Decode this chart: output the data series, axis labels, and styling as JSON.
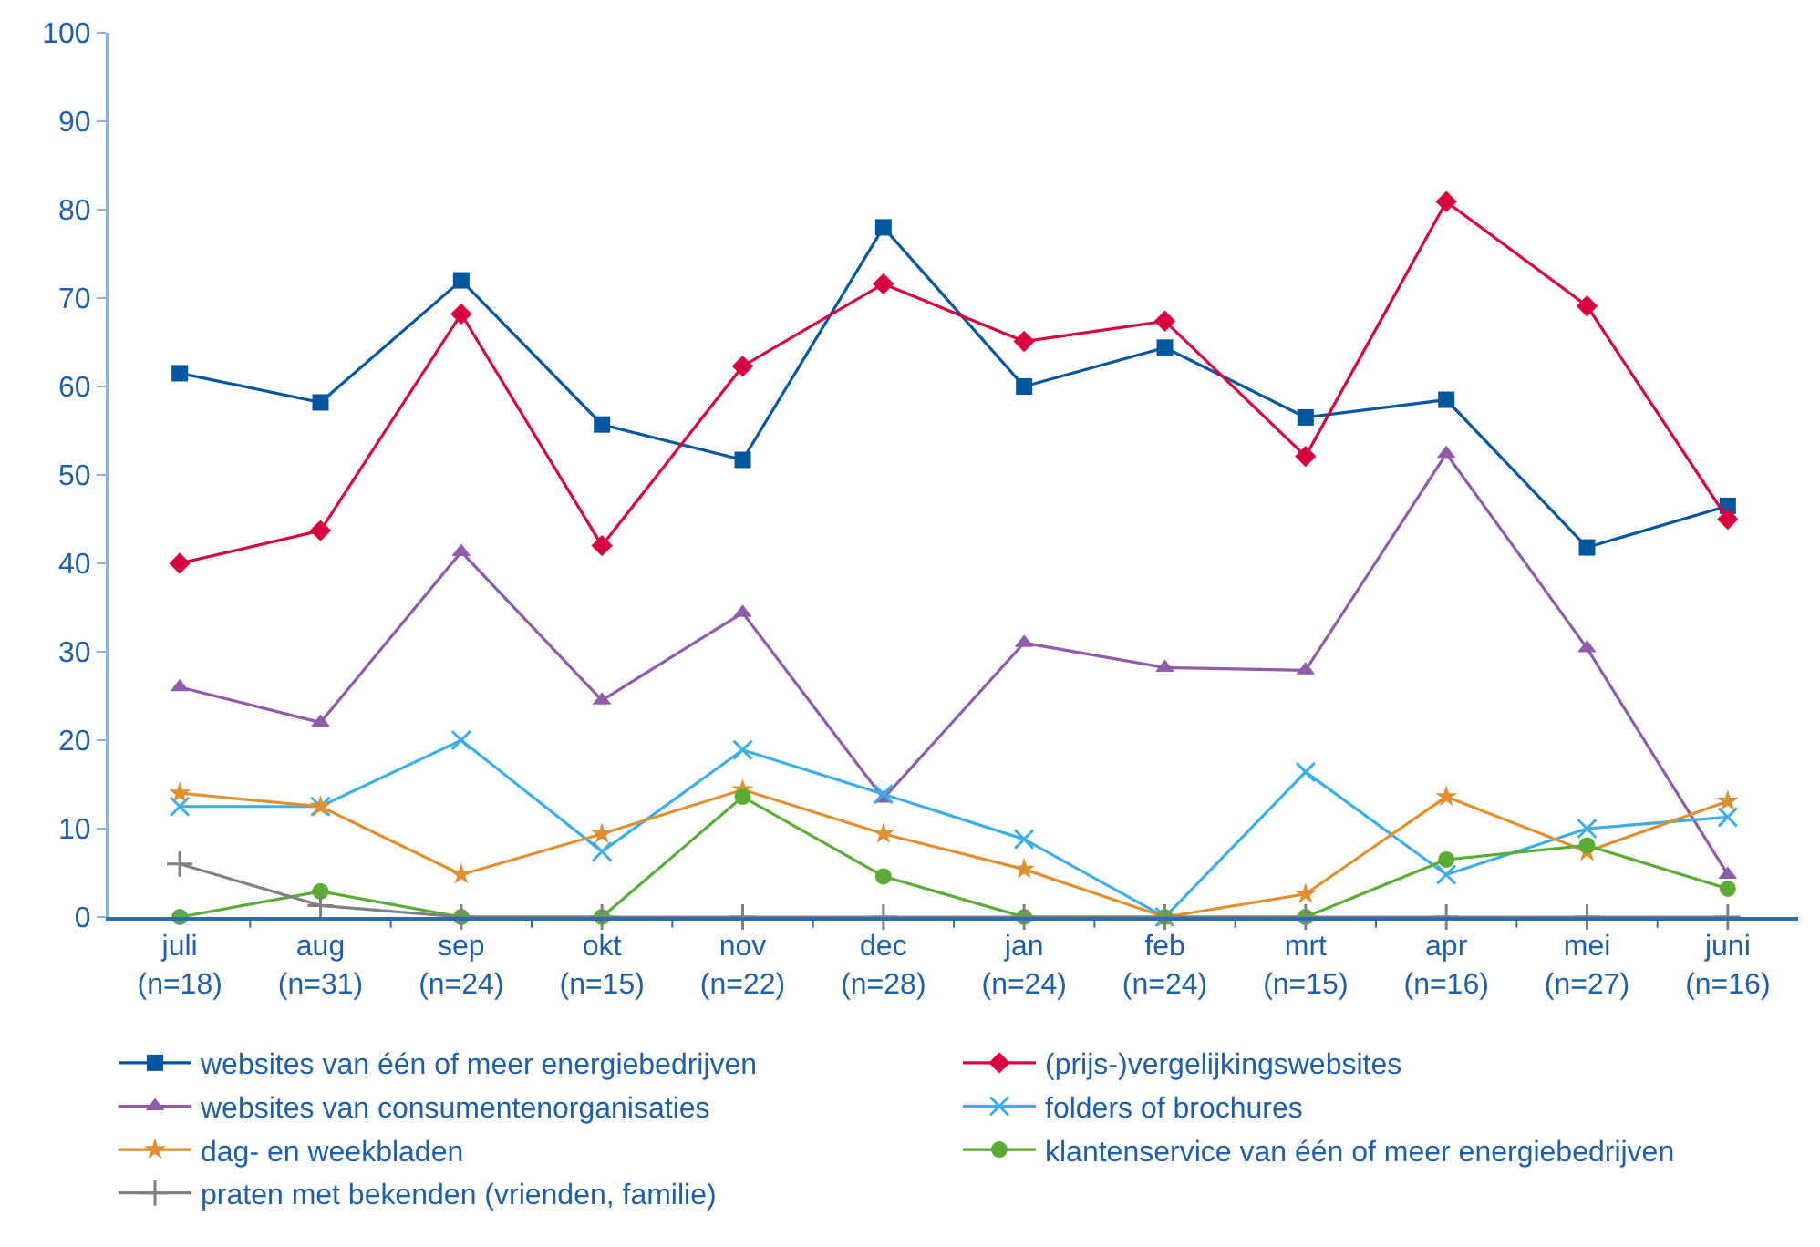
{
  "chart_data": {
    "type": "line",
    "categories": [
      "juli\n(n=18)",
      "aug\n(n=31)",
      "sep\n(n=24)",
      "okt\n(n=15)",
      "nov\n(n=22)",
      "dec\n(n=28)",
      "jan\n(n=24)",
      "feb\n(n=24)",
      "mrt\n(n=15)",
      "apr\n(n=16)",
      "mei\n(n=27)",
      "juni\n(n=16)"
    ],
    "series": [
      {
        "name": "websites van één of meer energiebedrijven",
        "color": "#0057a0",
        "marker": "square",
        "values": [
          61.5,
          58.2,
          72,
          55.7,
          51.7,
          78,
          60,
          64.4,
          56.5,
          58.5,
          41.8,
          46.5
        ]
      },
      {
        "name": "(prijs-)vergelijkingswebsites",
        "color": "#d9003f",
        "marker": "diamond",
        "values": [
          40,
          43.7,
          68.2,
          42,
          62.3,
          71.6,
          65.1,
          67.4,
          52.1,
          80.9,
          69.1,
          45
        ]
      },
      {
        "name": "websites van consumentenorganisaties",
        "color": "#8e5ca8",
        "marker": "triangle",
        "values": [
          26,
          22,
          41.3,
          24.5,
          34.4,
          13.4,
          31,
          28.2,
          27.9,
          52.4,
          30.4,
          4.8
        ]
      },
      {
        "name": "folders of brochures",
        "color": "#3baee8",
        "marker": "cross",
        "values": [
          12.5,
          12.5,
          20,
          7.4,
          18.9,
          13.9,
          8.8,
          0,
          16.4,
          4.8,
          10,
          11.3
        ]
      },
      {
        "name": "dag- en weekbladen",
        "color": "#e0902f",
        "marker": "star",
        "values": [
          14,
          12.5,
          4.8,
          9.4,
          14.4,
          9.4,
          5.4,
          0,
          2.6,
          13.6,
          7.4,
          13.1
        ]
      },
      {
        "name": "klantenservice van één of meer energiebedrijven",
        "color": "#5aac35",
        "marker": "circle",
        "values": [
          0,
          2.9,
          0,
          0,
          13.6,
          4.6,
          0,
          0,
          0,
          6.5,
          8.1,
          3.2
        ]
      },
      {
        "name": "praten met bekenden (vrienden, familie)",
        "color": "#808080",
        "marker": "plus",
        "values": [
          6,
          1.3,
          0,
          0,
          0,
          0,
          0,
          0,
          0,
          0,
          0,
          0
        ]
      }
    ],
    "ylim": [
      0,
      100
    ],
    "yticks": [
      0,
      10,
      20,
      30,
      40,
      50,
      60,
      70,
      80,
      90,
      100
    ],
    "legend": "bottom",
    "line_style": "solid"
  }
}
